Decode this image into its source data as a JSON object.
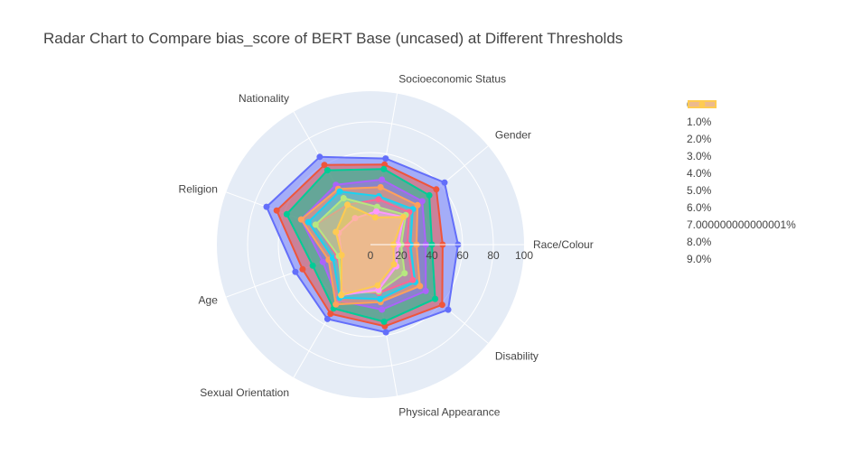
{
  "title": "Radar Chart to Compare bias_score of BERT Base (uncased) at Different Thresholds",
  "chart_data": {
    "type": "radar",
    "title": "Radar Chart to Compare bias_score of BERT Base (uncased) at Different Thresholds",
    "categories": [
      "Race/Colour",
      "Socioeconomic Status",
      "Gender",
      "Disability",
      "Nationality",
      "Religion",
      "Age",
      "Sexual Orientation",
      "Physical Appearance"
    ],
    "angular_order": [
      "Race/Colour",
      "Gender",
      "Socioeconomic Status",
      "Nationality",
      "Religion",
      "Age",
      "Sexual Orientation",
      "Physical Appearance",
      "Disability"
    ],
    "radial_range": [
      0,
      100
    ],
    "radial_ticks": [
      "0",
      "20",
      "40",
      "60",
      "80",
      "100"
    ],
    "legend_position": "top-right",
    "series": [
      {
        "name": "0.0%",
        "color": "#636efa",
        "values": [
          57,
          57,
          63,
          66,
          66,
          72,
          52,
          56,
          58
        ]
      },
      {
        "name": "1.0%",
        "color": "#ef553b",
        "values": [
          47,
          53,
          56,
          61,
          60,
          65,
          47,
          52,
          54
        ]
      },
      {
        "name": "2.0%",
        "color": "#00cc96",
        "values": [
          40,
          50,
          50,
          55,
          56,
          58,
          40,
          48,
          51
        ]
      },
      {
        "name": "3.0%",
        "color": "#ab63fa",
        "values": [
          36,
          43,
          44,
          47,
          45,
          48,
          33,
          42,
          43
        ]
      },
      {
        "name": "4.0%",
        "color": "#ffa15a",
        "values": [
          30,
          38,
          40,
          42,
          42,
          48,
          29,
          45,
          38
        ]
      },
      {
        "name": "5.0%",
        "color": "#19d3f3",
        "values": [
          26,
          32,
          36,
          38,
          40,
          43,
          26,
          40,
          36
        ]
      },
      {
        "name": "6.0%",
        "color": "#ff6692",
        "values": [
          24,
          30,
          33,
          36,
          30,
          38,
          23,
          35,
          32
        ]
      },
      {
        "name": "7.000000000000001%",
        "color": "#b6e880",
        "values": [
          20,
          25,
          30,
          29,
          35,
          38,
          22,
          37,
          31
        ]
      },
      {
        "name": "8.0%",
        "color": "#ff97ff",
        "values": [
          18,
          22,
          28,
          22,
          20,
          22,
          20,
          38,
          30
        ]
      },
      {
        "name": "9.0%",
        "color": "#fecb52",
        "values": [
          15,
          18,
          28,
          20,
          30,
          24,
          20,
          38,
          27
        ]
      }
    ]
  }
}
